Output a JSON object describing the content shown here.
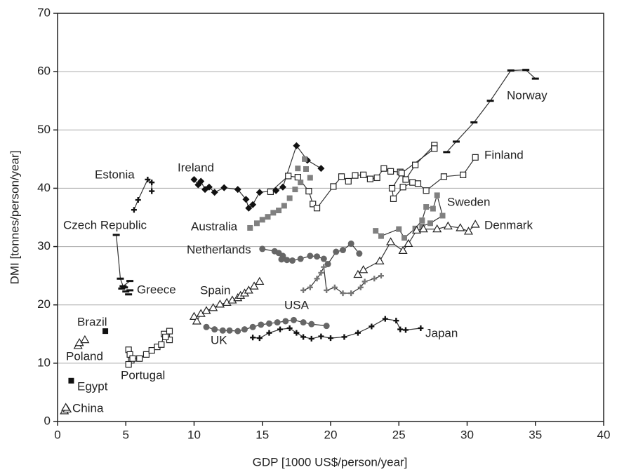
{
  "chart_data": {
    "type": "scatter",
    "xlabel": "GDP [1000 US$/person/year]",
    "ylabel": "DMI [tonnes/person/year]",
    "xlim": [
      0,
      40
    ],
    "xticks": [
      0,
      5,
      10,
      15,
      20,
      25,
      30,
      35,
      40
    ],
    "ylim": [
      0,
      70
    ],
    "yticks": [
      0,
      10,
      20,
      30,
      40,
      50,
      60,
      70
    ],
    "grid": true,
    "series": [
      {
        "name": "Norway",
        "marker": "dash",
        "color": "#111111",
        "x": [
          28.5,
          29.2,
          30.5,
          31.7,
          33.2,
          34.3,
          35.0
        ],
        "y": [
          46.2,
          48.0,
          51.3,
          55.0,
          60.2,
          60.3,
          58.8
        ]
      },
      {
        "name": "Finland",
        "marker": "open-square",
        "color": "#222222",
        "x": [
          15.6,
          16.9,
          17.6,
          18.4,
          18.7,
          19.0,
          20.2,
          20.8,
          21.3,
          21.8,
          22.4,
          22.9,
          23.4,
          23.9,
          24.4,
          25.1,
          25.5,
          26.2,
          27.6,
          27.6,
          25.2,
          24.5,
          24.6,
          25.3,
          26.0,
          26.4,
          27.0,
          28.3,
          29.7,
          30.6
        ],
        "y": [
          39.4,
          42.1,
          41.9,
          39.5,
          37.3,
          36.6,
          40.3,
          42.0,
          41.2,
          42.2,
          42.3,
          41.6,
          41.8,
          43.4,
          42.9,
          42.8,
          41.5,
          44.0,
          47.4,
          46.8,
          42.6,
          40.0,
          38.2,
          40.2,
          41.0,
          40.8,
          39.6,
          42.0,
          42.3,
          45.3
        ]
      },
      {
        "name": "Sweden",
        "marker": "square",
        "color": "#808080",
        "x": [
          23.3,
          23.7,
          25.0,
          25.4,
          26.2,
          26.7,
          27.0,
          27.5,
          27.8,
          28.2,
          27.3,
          26.7
        ],
        "y": [
          32.7,
          31.8,
          33.0,
          31.5,
          33.1,
          34.5,
          36.8,
          36.5,
          38.8,
          35.3,
          34.0,
          33.5
        ]
      },
      {
        "name": "Denmark",
        "marker": "open-triangle",
        "color": "#222222",
        "x": [
          22.0,
          22.4,
          23.6,
          24.4,
          25.3,
          25.7,
          26.3,
          26.8,
          27.8,
          28.6,
          29.5,
          30.1,
          30.6
        ],
        "y": [
          25.2,
          26.0,
          27.5,
          30.8,
          29.3,
          30.5,
          32.8,
          33.0,
          33.0,
          33.5,
          33.2,
          32.6,
          33.8
        ]
      },
      {
        "name": "Ireland",
        "marker": "diamond",
        "color": "#111111",
        "x": [
          10.0,
          10.3,
          10.5,
          10.8,
          11.1,
          11.5,
          12.2,
          13.2,
          13.8,
          14.0,
          14.3,
          14.8,
          16.0,
          16.5,
          17.5,
          18.3,
          19.3
        ],
        "y": [
          41.5,
          40.6,
          41.2,
          39.8,
          40.2,
          39.3,
          40.1,
          39.8,
          38.1,
          36.6,
          37.2,
          39.3,
          39.6,
          40.2,
          47.3,
          44.8,
          43.4
        ]
      },
      {
        "name": "Estonia",
        "marker": "plus",
        "color": "#111111",
        "x": [
          5.6,
          5.9,
          6.6,
          6.9,
          6.9
        ],
        "y": [
          36.3,
          38.0,
          41.5,
          41.0,
          39.5
        ]
      },
      {
        "name": "Australia",
        "marker": "square",
        "color": "#808080",
        "line": false,
        "x": [
          14.1,
          14.6,
          15.0,
          15.4,
          15.8,
          16.2,
          16.6,
          17.0,
          17.4,
          17.8,
          18.2,
          18.1,
          17.6,
          18.5
        ],
        "y": [
          33.2,
          34.0,
          34.6,
          35.1,
          35.8,
          36.2,
          37.0,
          38.3,
          39.8,
          41.0,
          43.3,
          45.0,
          43.4,
          41.8
        ]
      },
      {
        "name": "Czech Republic",
        "marker": "dash",
        "color": "#111111",
        "x": [
          4.3,
          4.6,
          4.8,
          5.3
        ],
        "y": [
          32.0,
          24.5,
          23.2,
          24.1
        ]
      },
      {
        "name": "Netherlands",
        "marker": "circle",
        "color": "#666666",
        "x": [
          15.0,
          15.9,
          16.2,
          16.5,
          16.4,
          16.8,
          17.2,
          17.8,
          18.5,
          19.0,
          19.5,
          19.8,
          20.4,
          20.9,
          21.5,
          22.1
        ],
        "y": [
          29.6,
          29.2,
          28.9,
          28.4,
          27.8,
          27.7,
          27.6,
          27.9,
          28.4,
          28.3,
          27.9,
          27.0,
          29.1,
          29.4,
          30.5,
          28.8
        ]
      },
      {
        "name": "Greece",
        "marker": "dash",
        "color": "#111111",
        "line": false,
        "x": [
          4.7,
          4.9,
          5.0,
          5.2,
          5.3
        ],
        "y": [
          22.8,
          23.0,
          22.3,
          21.8,
          22.5
        ]
      },
      {
        "name": "Spain",
        "marker": "open-triangle",
        "color": "#222222",
        "x": [
          10.0,
          10.2,
          10.5,
          10.9,
          11.4,
          11.9,
          12.4,
          12.8,
          13.2,
          13.4,
          13.7,
          14.0,
          14.4,
          14.8
        ],
        "y": [
          18.0,
          17.2,
          18.5,
          19.0,
          19.5,
          20.1,
          20.4,
          20.8,
          21.2,
          21.6,
          22.0,
          22.5,
          23.2,
          24.0
        ]
      },
      {
        "name": "USA",
        "marker": "plus",
        "color": "#777777",
        "x": [
          18.0,
          18.5,
          19.0,
          19.3,
          19.5,
          19.7,
          20.3,
          20.9,
          21.5,
          22.2,
          22.5,
          23.2,
          23.7
        ],
        "y": [
          22.5,
          23.0,
          24.5,
          25.5,
          26.5,
          22.5,
          23.0,
          22.0,
          22.0,
          23.0,
          24.0,
          24.5,
          25.0
        ]
      },
      {
        "name": "Brazil",
        "marker": "square",
        "color": "#111111",
        "line": false,
        "x": [
          3.5
        ],
        "y": [
          15.5
        ]
      },
      {
        "name": "UK",
        "marker": "circle",
        "color": "#666666",
        "x": [
          10.9,
          11.5,
          12.1,
          12.6,
          13.2,
          13.7,
          14.3,
          14.9,
          15.5,
          16.1,
          16.7,
          17.3,
          18.0,
          18.6,
          19.7
        ],
        "y": [
          16.2,
          15.8,
          15.6,
          15.6,
          15.5,
          15.8,
          16.2,
          16.6,
          16.8,
          17.0,
          17.2,
          17.4,
          17.0,
          16.7,
          16.4
        ]
      },
      {
        "name": "Japan",
        "marker": "plus",
        "color": "#111111",
        "x": [
          14.3,
          14.8,
          15.5,
          16.3,
          17.0,
          17.5,
          18.0,
          18.6,
          19.3,
          20.0,
          21.0,
          22.0,
          23.0,
          24.0,
          24.8,
          25.1,
          25.5,
          26.6
        ],
        "y": [
          14.4,
          14.3,
          15.2,
          15.8,
          16.0,
          15.2,
          14.5,
          14.2,
          14.6,
          14.3,
          14.5,
          15.2,
          16.3,
          17.6,
          17.3,
          15.8,
          15.7,
          16.0
        ]
      },
      {
        "name": "Poland",
        "marker": "open-triangle",
        "color": "#222222",
        "x": [
          1.5,
          1.6,
          2.0
        ],
        "y": [
          13.0,
          13.5,
          14.0
        ]
      },
      {
        "name": "Portugal",
        "marker": "open-square",
        "color": "#222222",
        "x": [
          5.2,
          5.3,
          5.4,
          5.2,
          5.5,
          6.0,
          6.5,
          6.9,
          7.3,
          7.6,
          7.8,
          8.2,
          8.2,
          7.9
        ],
        "y": [
          12.3,
          11.5,
          10.5,
          9.8,
          10.8,
          10.8,
          11.5,
          12.2,
          12.8,
          13.2,
          15.0,
          14.0,
          15.5,
          14.5
        ]
      },
      {
        "name": "Egypt",
        "marker": "square",
        "color": "#111111",
        "line": false,
        "x": [
          1.0
        ],
        "y": [
          7.0
        ]
      },
      {
        "name": "China",
        "marker": "open-triangle",
        "color": "#222222",
        "x": [
          0.5,
          0.7,
          0.6
        ],
        "y": [
          1.8,
          2.1,
          2.4
        ]
      }
    ]
  }
}
